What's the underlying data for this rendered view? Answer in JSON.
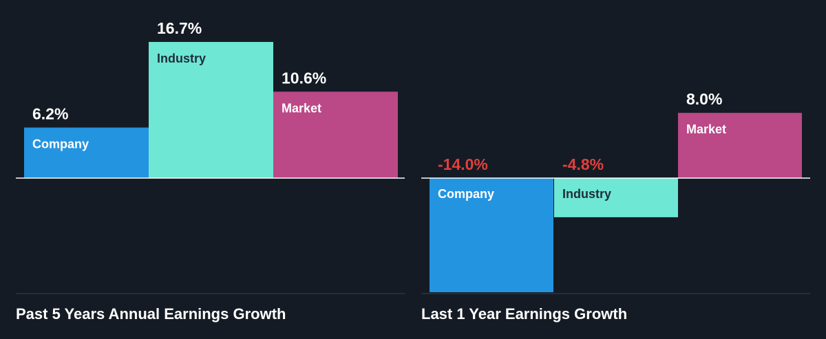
{
  "chart_data": [
    {
      "type": "bar",
      "title": "Past 5 Years Annual Earnings Growth",
      "categories": [
        "Company",
        "Industry",
        "Market"
      ],
      "values": [
        6.2,
        16.7,
        10.6
      ],
      "value_labels": [
        "6.2%",
        "16.7%",
        "10.6%"
      ],
      "unit": "%"
    },
    {
      "type": "bar",
      "title": "Last 1 Year Earnings Growth",
      "categories": [
        "Company",
        "Industry",
        "Market"
      ],
      "values": [
        -14.0,
        -4.8,
        8.0
      ],
      "value_labels": [
        "-14.0%",
        "-4.8%",
        "8.0%"
      ],
      "unit": "%"
    }
  ],
  "colors": {
    "company": "#2394e0",
    "industry": "#6ee7d4",
    "market": "#bb4887",
    "background": "#151b24",
    "positive_label": "#ffffff",
    "negative_label": "#e0403c",
    "bar_label_light": "#ffffff",
    "bar_label_dark": "#1f2d3a"
  }
}
